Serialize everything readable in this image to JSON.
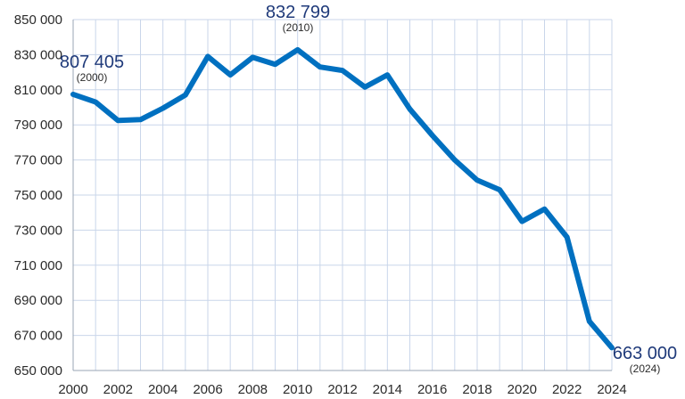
{
  "chart_data": {
    "type": "line",
    "title": "",
    "xlabel": "",
    "ylabel": "",
    "xlim": [
      2000,
      2024
    ],
    "ylim": [
      650000,
      850000
    ],
    "grid": true,
    "colors": {
      "line": "#0070c0",
      "grid": "#c9d6ea",
      "axis": "#9aa5b5"
    },
    "x_ticks": [
      2000,
      2002,
      2004,
      2006,
      2008,
      2010,
      2012,
      2014,
      2016,
      2018,
      2020,
      2022,
      2024
    ],
    "x_tick_labels": [
      "2000",
      "2002",
      "2004",
      "2006",
      "2008",
      "2010",
      "2012",
      "2014",
      "2016",
      "2018",
      "2020",
      "2022",
      "2024"
    ],
    "y_ticks": [
      650000,
      670000,
      690000,
      710000,
      730000,
      750000,
      770000,
      790000,
      810000,
      830000,
      850000
    ],
    "y_tick_labels": [
      "650 000",
      "670 000",
      "690 000",
      "710 000",
      "730 000",
      "750 000",
      "770 000",
      "790 000",
      "810 000",
      "830 000",
      "850 000"
    ],
    "series": [
      {
        "x": [
          2000,
          2001,
          2002,
          2003,
          2004,
          2005,
          2006,
          2007,
          2008,
          2009,
          2010,
          2011,
          2012,
          2013,
          2014,
          2015,
          2016,
          2017,
          2018,
          2019,
          2020,
          2021,
          2022,
          2023,
          2024
        ],
        "values": [
          807405,
          803000,
          792500,
          793000,
          799500,
          807000,
          829000,
          818500,
          828500,
          824500,
          832799,
          823000,
          821000,
          811500,
          818500,
          799000,
          784000,
          770000,
          758500,
          753000,
          735000,
          742000,
          726000,
          678000,
          663000
        ]
      }
    ],
    "annotations": [
      {
        "x": 2000,
        "value_label": "807 405",
        "year_label": "(2000)"
      },
      {
        "x": 2010,
        "value_label": "832 799",
        "year_label": "(2010)"
      },
      {
        "x": 2024,
        "value_label": "663 000",
        "year_label": "(2024)"
      }
    ]
  }
}
